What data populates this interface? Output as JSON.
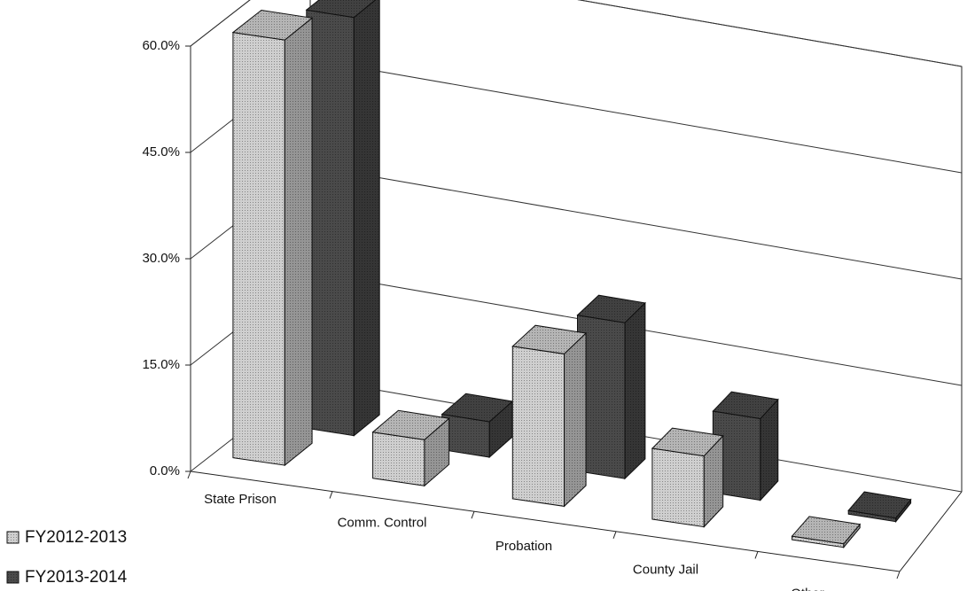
{
  "chart_data": {
    "type": "bar3d",
    "categories": [
      "State Prison",
      "Comm. Control",
      "Probation",
      "County Jail",
      "Other"
    ],
    "series": [
      {
        "name": "FY2012-2013",
        "color": "#cfcfcf",
        "values": [
          60,
          6.5,
          21.5,
          10,
          0.5
        ]
      },
      {
        "name": "FY2013-2014",
        "color": "#4a4a4a",
        "values": [
          59,
          5,
          22,
          11.5,
          0.5
        ]
      }
    ],
    "ylim": [
      0,
      60
    ],
    "yticks": [
      {
        "value": 0,
        "label": "0.0%"
      },
      {
        "value": 15,
        "label": "15.0%"
      },
      {
        "value": 30,
        "label": "30.0%"
      },
      {
        "value": 45,
        "label": "45.0%"
      },
      {
        "value": 60,
        "label": "60.0%"
      }
    ],
    "grid": true,
    "legend": "bottom-left"
  }
}
